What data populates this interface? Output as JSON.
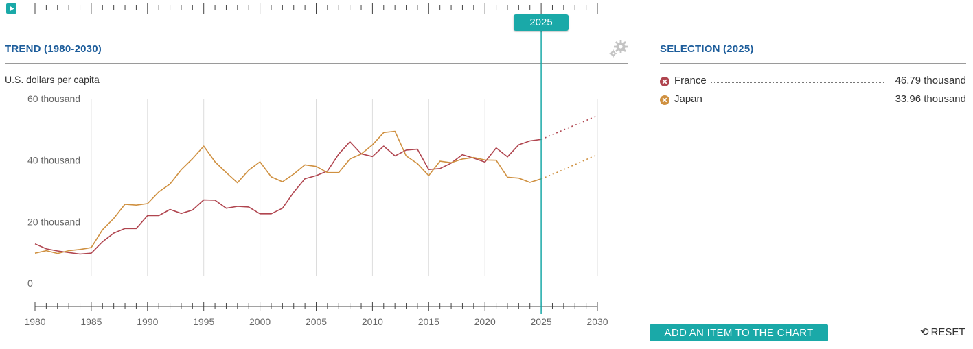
{
  "header": {
    "trend_title": "TREND (1980-2030)",
    "selection_title": "SELECTION (2025)",
    "unit_label": "U.S. dollars per capita",
    "year_badge": "2025"
  },
  "icons": {
    "play": "play-icon",
    "settings": "gear-icon",
    "reset": "reset-icon",
    "remove": "close-icon"
  },
  "colors": {
    "accent": "#1aa9a8",
    "title": "#1d5d9b",
    "france": "#b0454f",
    "japan": "#cf9040"
  },
  "legend": [
    {
      "name": "France",
      "value": "46.79 thousand",
      "color": "#b0454f"
    },
    {
      "name": "Japan",
      "value": "33.96 thousand",
      "color": "#cf9040"
    }
  ],
  "buttons": {
    "add": "ADD AN ITEM TO THE CHART",
    "reset": "RESET"
  },
  "chart_data": {
    "type": "line",
    "xlim": [
      1980,
      2030
    ],
    "ylim": [
      -10000,
      60000
    ],
    "y_ticks": [
      0,
      20000,
      40000,
      60000
    ],
    "y_tick_labels": [
      "0",
      "20 thousand",
      "40 thousand",
      "60 thousand"
    ],
    "x_ticks": [
      1980,
      1985,
      1990,
      1995,
      2000,
      2005,
      2010,
      2015,
      2020,
      2025,
      2030
    ],
    "x_tick_labels": [
      "1980",
      "1985",
      "1990",
      "1995",
      "2000",
      "2005",
      "2010",
      "2015",
      "2020",
      "2025",
      "2030"
    ],
    "selected_year": 2025,
    "projection_start": 2025,
    "grid": true,
    "series": [
      {
        "name": "France",
        "color": "#b0454f",
        "x": [
          1980,
          1981,
          1982,
          1983,
          1984,
          1985,
          1986,
          1987,
          1988,
          1989,
          1990,
          1991,
          1992,
          1993,
          1994,
          1995,
          1996,
          1997,
          1998,
          1999,
          2000,
          2001,
          2002,
          2003,
          2004,
          2005,
          2006,
          2007,
          2008,
          2009,
          2010,
          2011,
          2012,
          2013,
          2014,
          2015,
          2016,
          2017,
          2018,
          2019,
          2020,
          2021,
          2022,
          2023,
          2024,
          2025,
          2026,
          2027,
          2028,
          2029,
          2030
        ],
        "values": [
          12800,
          11200,
          10500,
          10000,
          9500,
          9800,
          13500,
          16300,
          17800,
          17800,
          22000,
          22000,
          24000,
          22700,
          23800,
          27100,
          27000,
          24400,
          25000,
          24800,
          22600,
          22600,
          24400,
          29600,
          34000,
          35000,
          36500,
          42000,
          46000,
          42100,
          41200,
          44600,
          41400,
          43300,
          43600,
          37000,
          37300,
          39100,
          41800,
          40700,
          39400,
          44000,
          41100,
          45000,
          46300,
          46790,
          48300,
          49900,
          51400,
          52900,
          54500
        ]
      },
      {
        "name": "Japan",
        "color": "#cf9040",
        "x": [
          1980,
          1981,
          1982,
          1983,
          1984,
          1985,
          1986,
          1987,
          1988,
          1989,
          1990,
          1991,
          1992,
          1993,
          1994,
          1995,
          1996,
          1997,
          1998,
          1999,
          2000,
          2001,
          2002,
          2003,
          2004,
          2005,
          2006,
          2007,
          2008,
          2009,
          2010,
          2011,
          2012,
          2013,
          2014,
          2015,
          2016,
          2017,
          2018,
          2019,
          2020,
          2021,
          2022,
          2023,
          2024,
          2025,
          2026,
          2027,
          2028,
          2029,
          2030
        ],
        "values": [
          9800,
          10600,
          9700,
          10600,
          11000,
          11600,
          17400,
          21100,
          25700,
          25400,
          25900,
          29700,
          32300,
          36900,
          40500,
          44600,
          39500,
          36000,
          32700,
          36800,
          39500,
          34600,
          33000,
          35500,
          38500,
          38000,
          36000,
          36000,
          40400,
          42000,
          45000,
          49000,
          49400,
          41400,
          38900,
          35000,
          39700,
          39200,
          40400,
          40900,
          40100,
          40000,
          34500,
          34200,
          32800,
          33960,
          35400,
          37000,
          38600,
          40200,
          41800
        ]
      }
    ]
  }
}
